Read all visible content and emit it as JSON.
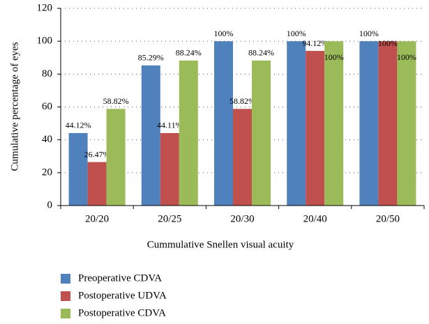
{
  "chart_data": {
    "type": "bar",
    "categories": [
      "20/20",
      "20/25",
      "20/30",
      "20/40",
      "20/50"
    ],
    "series": [
      {
        "name": "Preoperative CDVA",
        "color": "#4f81bd",
        "values": [
          44.12,
          85.29,
          100,
          100,
          100
        ],
        "value_labels": [
          "44.12%",
          "85.29%",
          "100%",
          "100%",
          "100%"
        ]
      },
      {
        "name": "Postoperative UDVA",
        "color": "#c0504d",
        "values": [
          26.47,
          44.11,
          58.82,
          94.12,
          100
        ],
        "value_labels": [
          "26.47%",
          "44.11%",
          "58.82%",
          "94.12%",
          "100%"
        ]
      },
      {
        "name": "Postoperative CDVA",
        "color": "#9bbb59",
        "values": [
          58.82,
          88.24,
          88.24,
          100,
          100
        ],
        "value_labels": [
          "58.82%",
          "88.24%",
          "88.24%",
          "100%",
          "100%"
        ]
      }
    ],
    "x_label": "Cummulative Snellen visual acuity",
    "y_label": "Cumulative percentage of eyes",
    "ylim": [
      0,
      120
    ],
    "yticks": [
      0,
      20,
      40,
      60,
      80,
      100,
      120
    ],
    "grid": true
  }
}
